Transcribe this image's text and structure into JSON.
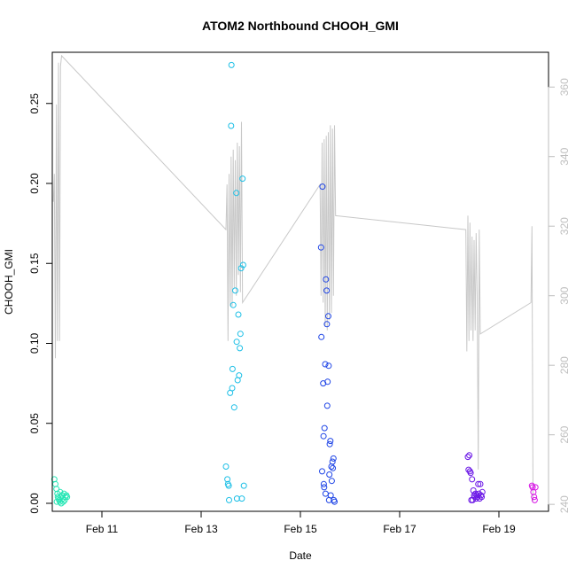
{
  "chart_data": {
    "type": "scatter",
    "title": "ATOM2 Northbound CHOOH_GMI",
    "xlabel": "Date",
    "ylabel": "CHOOH_GMI",
    "x_axis": {
      "type": "date",
      "range": [
        "2017-02-10",
        "2017-02-20"
      ],
      "ticks": [
        {
          "value": "2017-02-11",
          "label": "Feb 11"
        },
        {
          "value": "2017-02-13",
          "label": "Feb 13"
        },
        {
          "value": "2017-02-15",
          "label": "Feb 15"
        },
        {
          "value": "2017-02-17",
          "label": "Feb 17"
        },
        {
          "value": "2017-02-19",
          "label": "Feb 19"
        }
      ]
    },
    "y_axis": {
      "range": [
        -0.005,
        0.282
      ],
      "ticks": [
        {
          "value": 0.0,
          "label": "0.00"
        },
        {
          "value": 0.05,
          "label": "0.05"
        },
        {
          "value": 0.1,
          "label": "0.10"
        },
        {
          "value": 0.15,
          "label": "0.15"
        },
        {
          "value": 0.2,
          "label": "0.20"
        },
        {
          "value": 0.25,
          "label": "0.25"
        }
      ]
    },
    "y2_axis": {
      "range": [
        238,
        370
      ],
      "color": "#bebebe",
      "ticks": [
        {
          "value": 240,
          "label": "240"
        },
        {
          "value": 260,
          "label": "260"
        },
        {
          "value": 280,
          "label": "280"
        },
        {
          "value": 300,
          "label": "300"
        },
        {
          "value": 320,
          "label": "320"
        },
        {
          "value": 340,
          "label": "340"
        },
        {
          "value": 360,
          "label": "360"
        }
      ]
    },
    "grid": false,
    "series": [
      {
        "color": "#24e6b4",
        "points": [
          [
            "2017-02-10T01:00",
            0.015
          ],
          [
            "2017-02-10T01:30",
            0.012
          ],
          [
            "2017-02-10T02:00",
            0.009
          ],
          [
            "2017-02-10T02:30",
            0.006
          ],
          [
            "2017-02-10T02:40",
            0.004
          ],
          [
            "2017-02-10T03:00",
            0.003
          ],
          [
            "2017-02-10T03:20",
            0.002
          ],
          [
            "2017-02-10T03:40",
            0.001
          ],
          [
            "2017-02-10T04:00",
            0.004
          ],
          [
            "2017-02-10T04:20",
            0.0
          ],
          [
            "2017-02-10T04:40",
            0.005
          ],
          [
            "2017-02-10T05:00",
            0.003
          ],
          [
            "2017-02-10T05:20",
            0.001
          ],
          [
            "2017-02-10T05:40",
            0.006
          ],
          [
            "2017-02-10T06:00",
            0.002
          ],
          [
            "2017-02-10T06:20",
            0.004
          ],
          [
            "2017-02-10T06:50",
            0.005
          ],
          [
            "2017-02-10T07:10",
            0.004
          ],
          [
            "2017-02-10T02:10",
            0.001
          ],
          [
            "2017-02-10T03:50",
            0.007
          ]
        ]
      },
      {
        "color": "#1cbfe6",
        "points": [
          [
            "2017-02-13T12:00",
            0.023
          ],
          [
            "2017-02-13T12:40",
            0.015
          ],
          [
            "2017-02-13T13:00",
            0.012
          ],
          [
            "2017-02-13T13:20",
            0.011
          ],
          [
            "2017-02-13T13:30",
            0.002
          ],
          [
            "2017-02-13T14:00",
            0.069
          ],
          [
            "2017-02-13T14:30",
            0.236
          ],
          [
            "2017-02-13T14:40",
            0.274
          ],
          [
            "2017-02-13T15:00",
            0.072
          ],
          [
            "2017-02-13T15:10",
            0.084
          ],
          [
            "2017-02-13T15:30",
            0.124
          ],
          [
            "2017-02-13T16:00",
            0.06
          ],
          [
            "2017-02-13T16:30",
            0.133
          ],
          [
            "2017-02-13T17:00",
            0.194
          ],
          [
            "2017-02-13T17:10",
            0.101
          ],
          [
            "2017-02-13T17:20",
            0.003
          ],
          [
            "2017-02-13T17:40",
            0.077
          ],
          [
            "2017-02-13T18:00",
            0.118
          ],
          [
            "2017-02-13T18:20",
            0.08
          ],
          [
            "2017-02-13T18:40",
            0.097
          ],
          [
            "2017-02-13T19:00",
            0.106
          ],
          [
            "2017-02-13T19:20",
            0.147
          ],
          [
            "2017-02-13T19:40",
            0.003
          ],
          [
            "2017-02-13T20:00",
            0.203
          ],
          [
            "2017-02-13T20:20",
            0.149
          ],
          [
            "2017-02-13T20:40",
            0.011
          ]
        ]
      },
      {
        "color": "#1e44e6",
        "points": [
          [
            "2017-02-15T10:00",
            0.16
          ],
          [
            "2017-02-15T10:10",
            0.104
          ],
          [
            "2017-02-15T10:30",
            0.02
          ],
          [
            "2017-02-15T10:40",
            0.198
          ],
          [
            "2017-02-15T11:00",
            0.075
          ],
          [
            "2017-02-15T11:10",
            0.042
          ],
          [
            "2017-02-15T11:30",
            0.01
          ],
          [
            "2017-02-15T11:40",
            0.047
          ],
          [
            "2017-02-15T12:00",
            0.087
          ],
          [
            "2017-02-15T12:20",
            0.14
          ],
          [
            "2017-02-15T12:40",
            0.133
          ],
          [
            "2017-02-15T12:50",
            0.112
          ],
          [
            "2017-02-15T13:00",
            0.061
          ],
          [
            "2017-02-15T13:10",
            0.076
          ],
          [
            "2017-02-15T13:30",
            0.117
          ],
          [
            "2017-02-15T13:40",
            0.086
          ],
          [
            "2017-02-15T14:00",
            0.018
          ],
          [
            "2017-02-15T14:10",
            0.037
          ],
          [
            "2017-02-15T14:30",
            0.039
          ],
          [
            "2017-02-15T14:40",
            0.005
          ],
          [
            "2017-02-15T15:00",
            0.023
          ],
          [
            "2017-02-15T15:10",
            0.014
          ],
          [
            "2017-02-15T15:30",
            0.026
          ],
          [
            "2017-02-15T15:40",
            0.022
          ],
          [
            "2017-02-15T16:00",
            0.028
          ],
          [
            "2017-02-15T16:10",
            0.002
          ],
          [
            "2017-02-15T16:30",
            0.001
          ],
          [
            "2017-02-15T11:20",
            0.012
          ],
          [
            "2017-02-15T12:10",
            0.006
          ],
          [
            "2017-02-15T13:50",
            0.002
          ]
        ]
      },
      {
        "color": "#6a16e6",
        "points": [
          [
            "2017-02-18T09:00",
            0.029
          ],
          [
            "2017-02-18T09:20",
            0.021
          ],
          [
            "2017-02-18T09:40",
            0.03
          ],
          [
            "2017-02-18T10:00",
            0.02
          ],
          [
            "2017-02-18T10:20",
            0.019
          ],
          [
            "2017-02-18T10:40",
            0.002
          ],
          [
            "2017-02-18T11:00",
            0.015
          ],
          [
            "2017-02-18T11:20",
            0.002
          ],
          [
            "2017-02-18T11:40",
            0.008
          ],
          [
            "2017-02-18T12:00",
            0.005
          ],
          [
            "2017-02-18T12:20",
            0.004
          ],
          [
            "2017-02-18T12:40",
            0.006
          ],
          [
            "2017-02-18T13:00",
            0.003
          ],
          [
            "2017-02-18T13:20",
            0.005
          ],
          [
            "2017-02-18T13:40",
            0.004
          ],
          [
            "2017-02-18T14:00",
            0.012
          ],
          [
            "2017-02-18T14:20",
            0.006
          ],
          [
            "2017-02-18T14:40",
            0.003
          ],
          [
            "2017-02-18T15:00",
            0.012
          ],
          [
            "2017-02-18T15:20",
            0.005
          ],
          [
            "2017-02-18T15:40",
            0.004
          ],
          [
            "2017-02-18T16:00",
            0.007
          ]
        ]
      },
      {
        "color": "#d816e6",
        "points": [
          [
            "2017-02-19T16:00",
            0.011
          ],
          [
            "2017-02-19T16:20",
            0.01
          ],
          [
            "2017-02-19T16:40",
            0.007
          ],
          [
            "2017-02-19T17:00",
            0.004
          ],
          [
            "2017-02-19T17:20",
            0.002
          ],
          [
            "2017-02-19T17:40",
            0.01
          ]
        ]
      }
    ],
    "line_series": {
      "axis": "y2",
      "color": "#c8c8c8",
      "points": [
        [
          "2017-02-10T00:30",
          327
        ],
        [
          "2017-02-10T01:00",
          335
        ],
        [
          "2017-02-10T01:30",
          282
        ],
        [
          "2017-02-10T02:00",
          355
        ],
        [
          "2017-02-10T02:30",
          287
        ],
        [
          "2017-02-10T03:00",
          367
        ],
        [
          "2017-02-10T03:30",
          287
        ],
        [
          "2017-02-10T04:00",
          366
        ],
        [
          "2017-02-10T04:30",
          369
        ],
        [
          "2017-02-13T12:00",
          319
        ],
        [
          "2017-02-13T12:30",
          332
        ],
        [
          "2017-02-13T13:00",
          287
        ],
        [
          "2017-02-13T13:30",
          335
        ],
        [
          "2017-02-13T14:00",
          297
        ],
        [
          "2017-02-13T14:30",
          340
        ],
        [
          "2017-02-13T15:00",
          297
        ],
        [
          "2017-02-13T15:30",
          342
        ],
        [
          "2017-02-13T16:00",
          302
        ],
        [
          "2017-02-13T16:30",
          339
        ],
        [
          "2017-02-13T17:00",
          300
        ],
        [
          "2017-02-13T17:30",
          344
        ],
        [
          "2017-02-13T18:00",
          306
        ],
        [
          "2017-02-13T18:30",
          343
        ],
        [
          "2017-02-13T19:00",
          301
        ],
        [
          "2017-02-13T19:30",
          350
        ],
        [
          "2017-02-13T20:00",
          298
        ],
        [
          "2017-02-15T09:30",
          332
        ],
        [
          "2017-02-15T10:00",
          300
        ],
        [
          "2017-02-15T10:30",
          344
        ],
        [
          "2017-02-15T11:00",
          298
        ],
        [
          "2017-02-15T11:30",
          345
        ],
        [
          "2017-02-15T12:00",
          291
        ],
        [
          "2017-02-15T12:30",
          346
        ],
        [
          "2017-02-15T13:00",
          290
        ],
        [
          "2017-02-15T13:30",
          347
        ],
        [
          "2017-02-15T14:00",
          293
        ],
        [
          "2017-02-15T14:30",
          349
        ],
        [
          "2017-02-15T15:00",
          295
        ],
        [
          "2017-02-15T15:30",
          348
        ],
        [
          "2017-02-15T16:00",
          300
        ],
        [
          "2017-02-15T16:30",
          349
        ],
        [
          "2017-02-15T17:00",
          323
        ],
        [
          "2017-02-18T08:00",
          319
        ],
        [
          "2017-02-18T08:30",
          284
        ],
        [
          "2017-02-18T09:00",
          323
        ],
        [
          "2017-02-18T09:30",
          287
        ],
        [
          "2017-02-18T10:00",
          321
        ],
        [
          "2017-02-18T10:30",
          290
        ],
        [
          "2017-02-18T11:00",
          317
        ],
        [
          "2017-02-18T11:30",
          287
        ],
        [
          "2017-02-18T12:00",
          316
        ],
        [
          "2017-02-18T12:30",
          290
        ],
        [
          "2017-02-18T13:00",
          318
        ],
        [
          "2017-02-18T13:30",
          300
        ],
        [
          "2017-02-18T14:00",
          250
        ],
        [
          "2017-02-18T14:30",
          319
        ],
        [
          "2017-02-18T15:00",
          289
        ],
        [
          "2017-02-19T15:30",
          298
        ],
        [
          "2017-02-19T16:00",
          320
        ],
        [
          "2017-02-19T16:30",
          241
        ]
      ]
    }
  }
}
